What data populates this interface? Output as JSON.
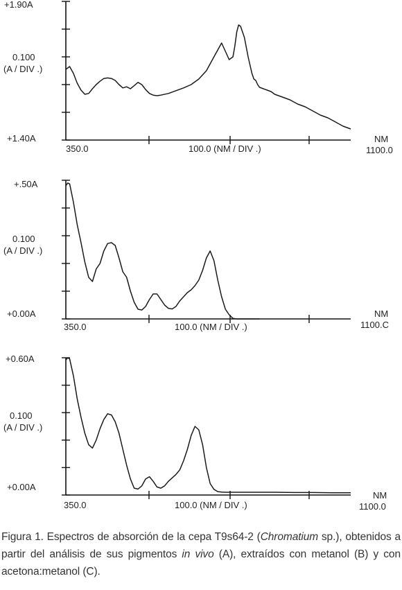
{
  "chart_data": [
    {
      "type": "line",
      "panel": "A",
      "ymax_label": "+1.90A",
      "ymin_label": "+1.40A",
      "yscale_label_1": "0.100",
      "yscale_label_2": "(A / DIV .)",
      "x_start_label": "350.0",
      "x_mid_label": "100.0 (NM / DIV .)",
      "x_unit_label": "NM",
      "x_end_label": "1100.0",
      "ylim": [
        1.4,
        1.9
      ],
      "xlim": [
        350,
        1100
      ],
      "x": [
        350,
        360,
        370,
        380,
        390,
        400,
        410,
        420,
        430,
        440,
        450,
        460,
        470,
        480,
        490,
        500,
        510,
        520,
        530,
        540,
        550,
        560,
        570,
        580,
        590,
        600,
        620,
        640,
        660,
        680,
        700,
        720,
        740,
        760,
        770,
        780,
        790,
        795,
        800,
        805,
        810,
        820,
        830,
        840,
        845,
        850,
        855,
        860,
        870,
        880,
        890,
        900,
        920,
        940,
        960,
        980,
        1000,
        1020,
        1040,
        1060,
        1080,
        1100
      ],
      "y": [
        1.655,
        1.665,
        1.64,
        1.605,
        1.58,
        1.565,
        1.568,
        1.585,
        1.6,
        1.612,
        1.622,
        1.624,
        1.622,
        1.615,
        1.6,
        1.588,
        1.592,
        1.585,
        1.596,
        1.608,
        1.6,
        1.582,
        1.568,
        1.562,
        1.56,
        1.562,
        1.568,
        1.578,
        1.588,
        1.6,
        1.62,
        1.65,
        1.7,
        1.75,
        1.72,
        1.69,
        1.7,
        1.74,
        1.79,
        1.815,
        1.81,
        1.77,
        1.7,
        1.64,
        1.62,
        1.615,
        1.6,
        1.59,
        1.585,
        1.58,
        1.575,
        1.565,
        1.555,
        1.545,
        1.53,
        1.52,
        1.505,
        1.49,
        1.48,
        1.465,
        1.45,
        1.44
      ]
    },
    {
      "type": "line",
      "panel": "B",
      "ymax_label": "+.50A",
      "ymin_label": "+0.00A",
      "yscale_label_1": "0.100",
      "yscale_label_2": "(A / DIV .)",
      "x_start_label": "350.0",
      "x_mid_label": "100.0 (NM / DIV .)",
      "x_unit_label": "NM",
      "x_end_label": "1100.C",
      "ylim": [
        0.0,
        0.5
      ],
      "xlim": [
        350,
        1100
      ],
      "x": [
        350,
        355,
        360,
        370,
        380,
        390,
        400,
        410,
        420,
        430,
        440,
        450,
        460,
        470,
        480,
        490,
        500,
        510,
        520,
        530,
        540,
        550,
        560,
        570,
        580,
        590,
        600,
        610,
        620,
        630,
        640,
        650,
        660,
        670,
        680,
        690,
        700,
        710,
        720,
        730,
        740,
        750,
        760,
        770,
        780,
        790,
        800,
        810,
        820,
        830,
        840,
        850,
        860
      ],
      "y": [
        0.48,
        0.49,
        0.487,
        0.42,
        0.34,
        0.275,
        0.205,
        0.15,
        0.135,
        0.18,
        0.2,
        0.245,
        0.272,
        0.275,
        0.265,
        0.22,
        0.17,
        0.15,
        0.1,
        0.06,
        0.035,
        0.032,
        0.045,
        0.07,
        0.09,
        0.09,
        0.07,
        0.05,
        0.038,
        0.036,
        0.045,
        0.065,
        0.08,
        0.095,
        0.105,
        0.12,
        0.14,
        0.175,
        0.22,
        0.245,
        0.21,
        0.14,
        0.08,
        0.035,
        0.015,
        0.002,
        0.0,
        0.0,
        0.0,
        0.0,
        0.0,
        0.0,
        0.0
      ]
    },
    {
      "type": "line",
      "panel": "C",
      "ymax_label": "+0.60A",
      "ymin_label": "+0.00A",
      "yscale_label_1": "0.100",
      "yscale_label_2": "(A / DIV .)",
      "x_start_label": "350.0",
      "x_mid_label": "100.0 (NM / DIV .)",
      "x_unit_label": "NM",
      "x_end_label": "1100.0",
      "ylim": [
        0.0,
        0.6
      ],
      "xlim": [
        350,
        1100
      ],
      "x": [
        350,
        355,
        360,
        370,
        380,
        390,
        400,
        410,
        420,
        430,
        440,
        450,
        460,
        470,
        480,
        490,
        500,
        510,
        520,
        530,
        540,
        550,
        560,
        570,
        580,
        590,
        600,
        610,
        620,
        630,
        640,
        650,
        660,
        670,
        680,
        690,
        700,
        710,
        720,
        730,
        740,
        750,
        760,
        770,
        780,
        800,
        850,
        900,
        950,
        1000,
        1050,
        1100
      ],
      "y": [
        0.59,
        0.6,
        0.595,
        0.52,
        0.42,
        0.34,
        0.27,
        0.22,
        0.205,
        0.24,
        0.29,
        0.33,
        0.355,
        0.35,
        0.32,
        0.27,
        0.2,
        0.13,
        0.07,
        0.03,
        0.026,
        0.04,
        0.07,
        0.08,
        0.06,
        0.035,
        0.03,
        0.04,
        0.06,
        0.075,
        0.09,
        0.11,
        0.15,
        0.2,
        0.26,
        0.3,
        0.285,
        0.22,
        0.12,
        0.05,
        0.025,
        0.015,
        0.013,
        0.012,
        0.012,
        0.012,
        0.012,
        0.012,
        0.011,
        0.011,
        0.01,
        0.01
      ]
    }
  ],
  "caption": {
    "p1": "Figura 1. Espectros de absorción de la cepa T9s64-2 (",
    "species": "Chromatium",
    "p2": " sp.), obtenidos a partir del análisis de sus pigmentos ",
    "invivo": "in vivo",
    "p3": " (A), extraídos con metanol (B) y con acetona:metanol (C)."
  },
  "colors": {
    "line": "#1a1a1a",
    "frame": "#111111"
  }
}
